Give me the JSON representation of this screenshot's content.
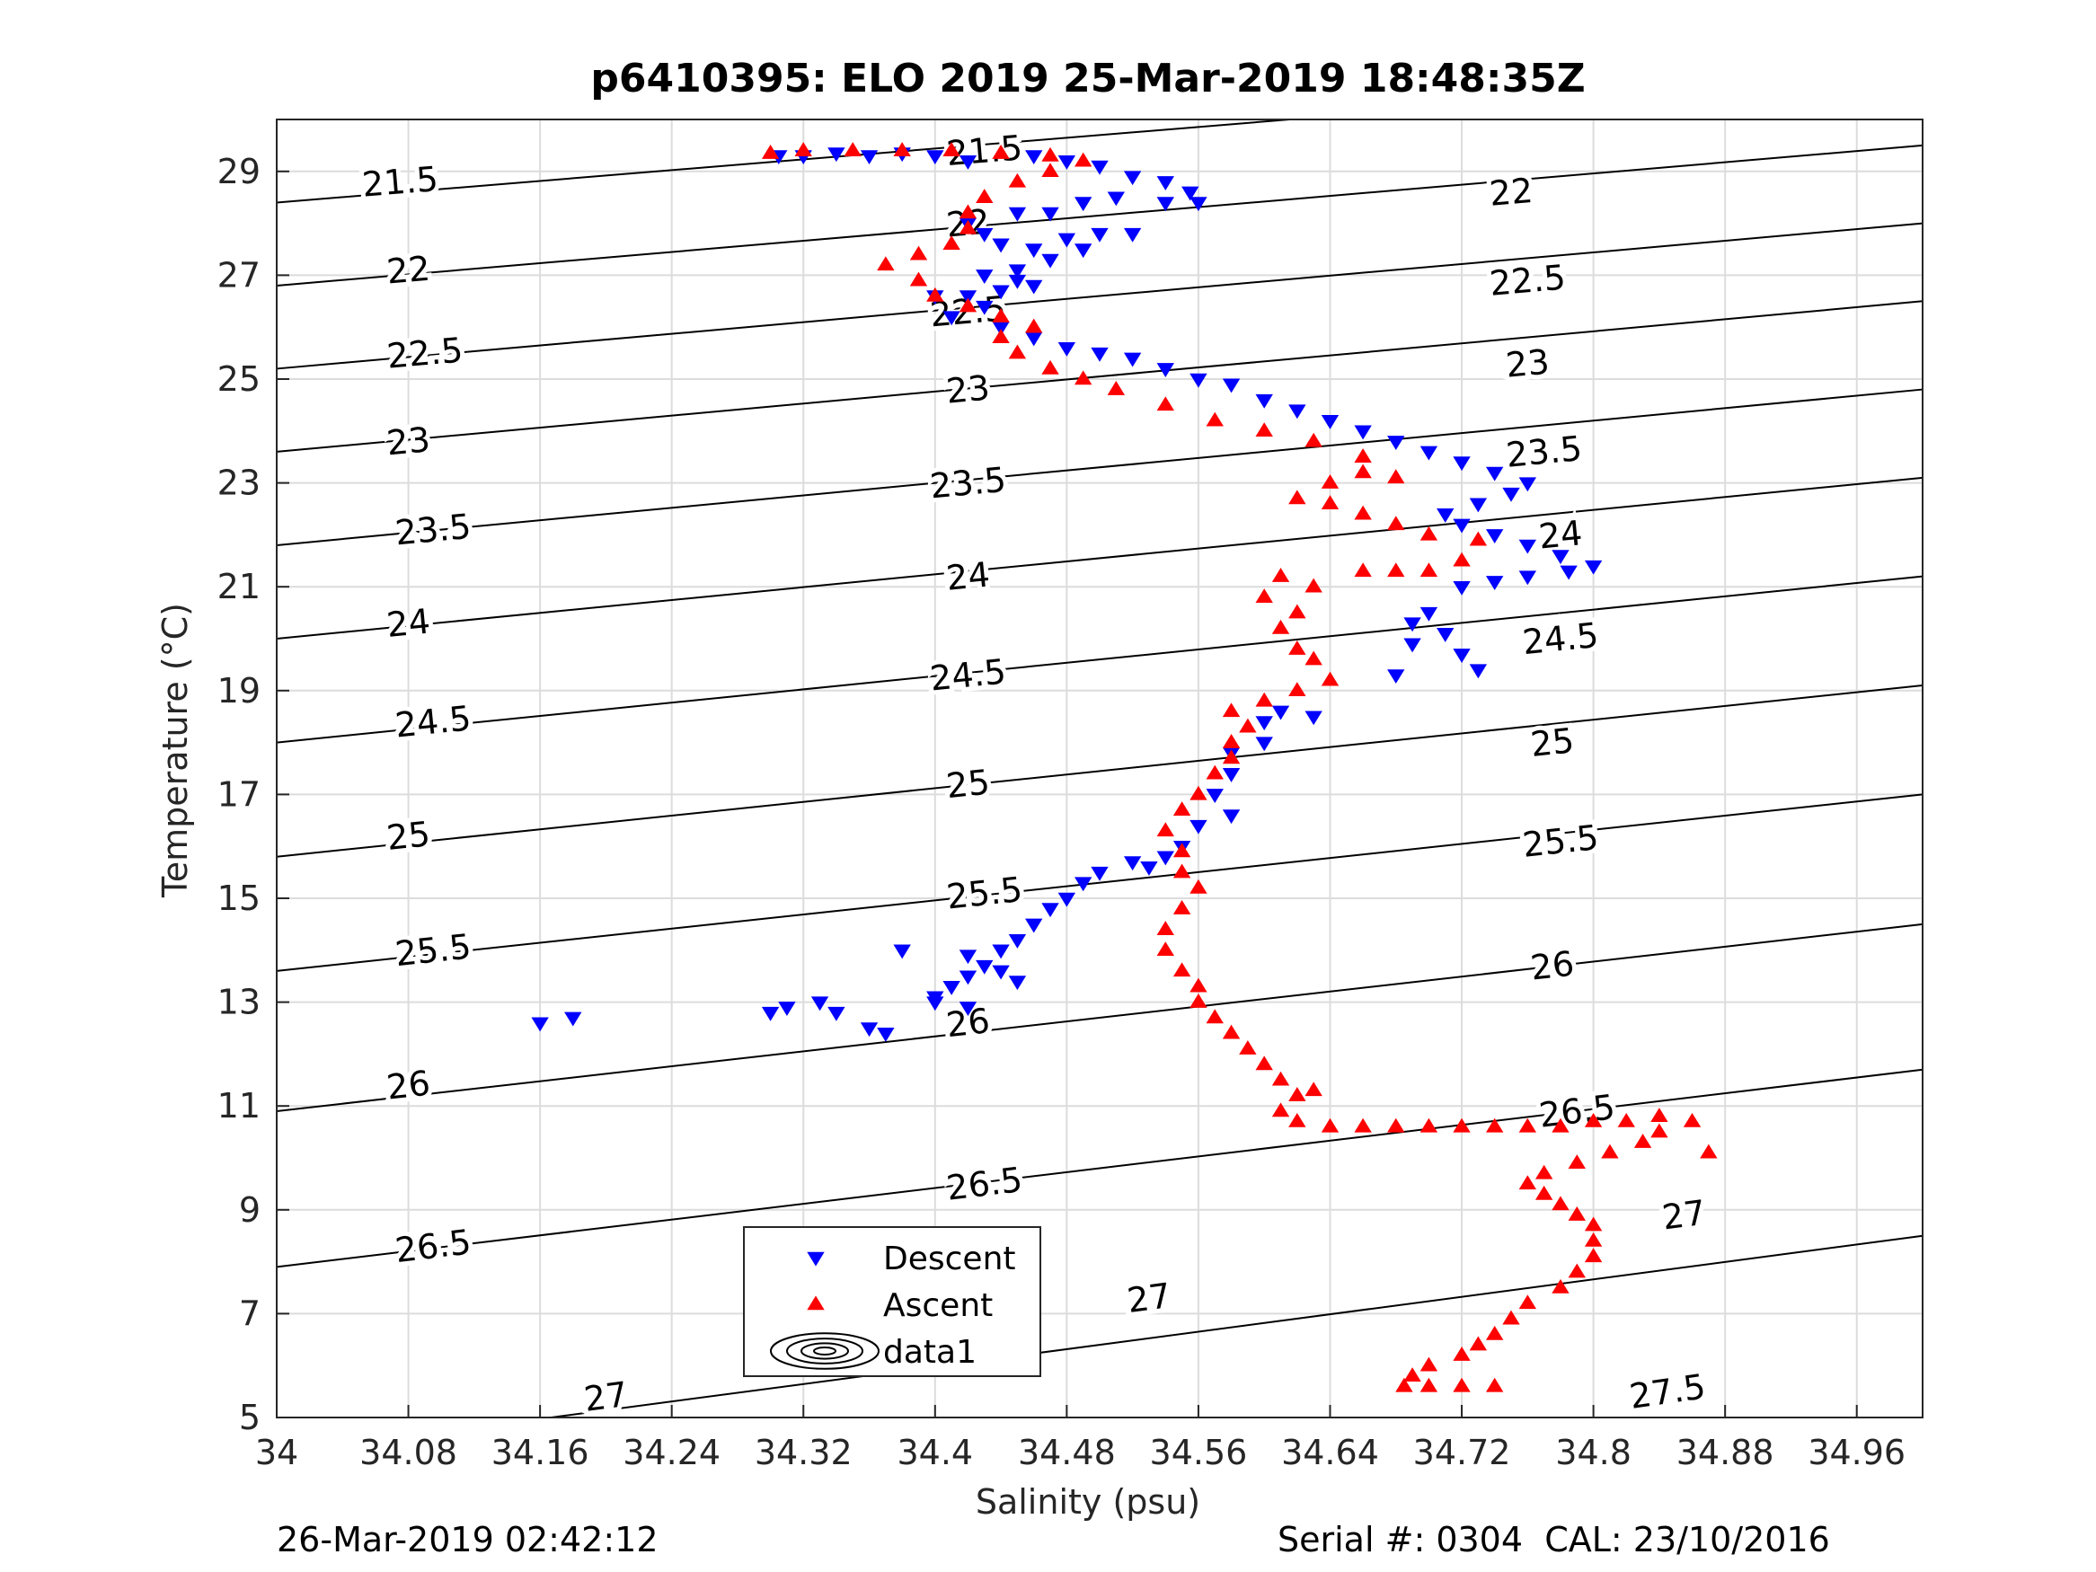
{
  "chart_data": {
    "type": "scatter",
    "title": "p6410395: ELO 2019 25-Mar-2019 18:48:35Z",
    "xlabel": "Salinity (psu)",
    "ylabel": "Temperature (°C)",
    "xlim": [
      34,
      35
    ],
    "ylim": [
      5,
      30
    ],
    "xticks": [
      "34",
      "34.08",
      "34.16",
      "34.24",
      "34.32",
      "34.4",
      "34.48",
      "34.56",
      "34.64",
      "34.72",
      "34.8",
      "34.88",
      "34.96"
    ],
    "yticks": [
      "5",
      "7",
      "9",
      "11",
      "13",
      "15",
      "17",
      "19",
      "21",
      "23",
      "25",
      "27",
      "29"
    ],
    "grid": true,
    "legend_position": "bottom-center",
    "legend": [
      {
        "label": "Descent",
        "marker": "triangle-down",
        "color": "#0000ff"
      },
      {
        "label": "Ascent",
        "marker": "triangle-up",
        "color": "#ff0000"
      },
      {
        "label": "data1",
        "marker": "contour",
        "color": "#000000"
      }
    ],
    "isopycnals": [
      {
        "label": "21.5",
        "slope": 2.6,
        "t_at_s34": 28.4,
        "label_positions": [
          [
            34.075,
            28.8
          ],
          [
            34.43,
            29.4
          ]
        ]
      },
      {
        "label": "22",
        "slope": 2.7,
        "t_at_s34": 26.8,
        "label_positions": [
          [
            34.08,
            27.1
          ],
          [
            34.42,
            28.0
          ],
          [
            34.75,
            28.6
          ]
        ]
      },
      {
        "label": "22.5",
        "slope": 2.8,
        "t_at_s34": 25.2,
        "label_positions": [
          [
            34.09,
            25.5
          ],
          [
            34.42,
            26.3
          ],
          [
            34.76,
            26.9
          ]
        ]
      },
      {
        "label": "23",
        "slope": 2.9,
        "t_at_s34": 23.6,
        "label_positions": [
          [
            34.08,
            23.8
          ],
          [
            34.42,
            24.8
          ],
          [
            34.76,
            25.3
          ]
        ]
      },
      {
        "label": "23.5",
        "slope": 3.0,
        "t_at_s34": 21.8,
        "label_positions": [
          [
            34.095,
            22.1
          ],
          [
            34.42,
            23.0
          ],
          [
            34.77,
            23.6
          ]
        ]
      },
      {
        "label": "24",
        "slope": 3.1,
        "t_at_s34": 20.0,
        "label_positions": [
          [
            34.08,
            20.3
          ],
          [
            34.42,
            21.2
          ],
          [
            34.78,
            22.0
          ]
        ]
      },
      {
        "label": "24.5",
        "slope": 3.2,
        "t_at_s34": 18.0,
        "label_positions": [
          [
            34.095,
            18.4
          ],
          [
            34.42,
            19.3
          ],
          [
            34.78,
            20.0
          ]
        ]
      },
      {
        "label": "25",
        "slope": 3.3,
        "t_at_s34": 15.8,
        "label_positions": [
          [
            34.08,
            16.2
          ],
          [
            34.42,
            17.2
          ],
          [
            34.775,
            18.0
          ]
        ]
      },
      {
        "label": "25.5",
        "slope": 3.4,
        "t_at_s34": 13.6,
        "label_positions": [
          [
            34.095,
            14.0
          ],
          [
            34.43,
            15.1
          ],
          [
            34.78,
            16.1
          ]
        ]
      },
      {
        "label": "26",
        "slope": 3.6,
        "t_at_s34": 10.9,
        "label_positions": [
          [
            34.08,
            11.4
          ],
          [
            34.42,
            12.6
          ],
          [
            34.775,
            13.7
          ]
        ]
      },
      {
        "label": "26.5",
        "slope": 3.8,
        "t_at_s34": 7.9,
        "label_positions": [
          [
            34.095,
            8.3
          ],
          [
            34.43,
            9.5
          ],
          [
            34.79,
            10.9
          ]
        ]
      },
      {
        "label": "27",
        "slope": 4.2,
        "t_at_s34": 4.3,
        "label_positions": [
          [
            34.2,
            5.4
          ],
          [
            34.53,
            7.3
          ],
          [
            34.855,
            8.9
          ]
        ]
      },
      {
        "label": "27.5",
        "slope": 4.6,
        "t_at_s34": 0.4,
        "label_positions": [
          [
            34.845,
            5.5
          ]
        ]
      }
    ],
    "series": [
      {
        "name": "Descent",
        "marker": "triangle-down",
        "color": "#0000ff",
        "points": [
          [
            34.305,
            29.3
          ],
          [
            34.32,
            29.3
          ],
          [
            34.34,
            29.35
          ],
          [
            34.36,
            29.3
          ],
          [
            34.38,
            29.35
          ],
          [
            34.4,
            29.3
          ],
          [
            34.42,
            29.2
          ],
          [
            34.46,
            29.3
          ],
          [
            34.48,
            29.2
          ],
          [
            34.5,
            29.1
          ],
          [
            34.52,
            28.9
          ],
          [
            34.54,
            28.8
          ],
          [
            34.555,
            28.6
          ],
          [
            34.56,
            28.4
          ],
          [
            34.54,
            28.4
          ],
          [
            34.51,
            28.5
          ],
          [
            34.49,
            28.4
          ],
          [
            34.47,
            28.2
          ],
          [
            34.45,
            28.2
          ],
          [
            34.42,
            28.0
          ],
          [
            34.43,
            27.8
          ],
          [
            34.44,
            27.6
          ],
          [
            34.46,
            27.5
          ],
          [
            34.48,
            27.7
          ],
          [
            34.5,
            27.8
          ],
          [
            34.52,
            27.8
          ],
          [
            34.49,
            27.5
          ],
          [
            34.47,
            27.3
          ],
          [
            34.45,
            27.1
          ],
          [
            34.43,
            27.0
          ],
          [
            34.45,
            26.9
          ],
          [
            34.46,
            26.8
          ],
          [
            34.44,
            26.7
          ],
          [
            34.42,
            26.6
          ],
          [
            34.4,
            26.6
          ],
          [
            34.43,
            26.4
          ],
          [
            34.41,
            26.2
          ],
          [
            34.44,
            26.0
          ],
          [
            34.46,
            25.8
          ],
          [
            34.48,
            25.6
          ],
          [
            34.5,
            25.5
          ],
          [
            34.52,
            25.4
          ],
          [
            34.54,
            25.2
          ],
          [
            34.56,
            25.0
          ],
          [
            34.58,
            24.9
          ],
          [
            34.6,
            24.6
          ],
          [
            34.62,
            24.4
          ],
          [
            34.64,
            24.2
          ],
          [
            34.66,
            24.0
          ],
          [
            34.68,
            23.8
          ],
          [
            34.7,
            23.6
          ],
          [
            34.72,
            23.4
          ],
          [
            34.74,
            23.2
          ],
          [
            34.76,
            23.0
          ],
          [
            34.75,
            22.8
          ],
          [
            34.73,
            22.6
          ],
          [
            34.71,
            22.4
          ],
          [
            34.72,
            22.2
          ],
          [
            34.74,
            22.0
          ],
          [
            34.76,
            21.8
          ],
          [
            34.78,
            21.6
          ],
          [
            34.8,
            21.4
          ],
          [
            34.785,
            21.3
          ],
          [
            34.76,
            21.2
          ],
          [
            34.74,
            21.1
          ],
          [
            34.72,
            21.0
          ],
          [
            34.7,
            20.5
          ],
          [
            34.69,
            20.3
          ],
          [
            34.71,
            20.1
          ],
          [
            34.69,
            19.9
          ],
          [
            34.72,
            19.7
          ],
          [
            34.73,
            19.4
          ],
          [
            34.68,
            19.3
          ],
          [
            34.63,
            18.5
          ],
          [
            34.61,
            18.6
          ],
          [
            34.6,
            18.4
          ],
          [
            34.6,
            18.0
          ],
          [
            34.58,
            17.8
          ],
          [
            34.58,
            17.4
          ],
          [
            34.57,
            17.0
          ],
          [
            34.58,
            16.6
          ],
          [
            34.56,
            16.4
          ],
          [
            34.55,
            16.0
          ],
          [
            34.54,
            15.8
          ],
          [
            34.53,
            15.6
          ],
          [
            34.52,
            15.7
          ],
          [
            34.5,
            15.5
          ],
          [
            34.49,
            15.3
          ],
          [
            34.48,
            15.0
          ],
          [
            34.47,
            14.8
          ],
          [
            34.46,
            14.5
          ],
          [
            34.45,
            14.2
          ],
          [
            34.44,
            14.0
          ],
          [
            34.43,
            13.7
          ],
          [
            34.42,
            13.5
          ],
          [
            34.41,
            13.3
          ],
          [
            34.4,
            13.1
          ],
          [
            34.42,
            13.9
          ],
          [
            34.44,
            13.6
          ],
          [
            34.45,
            13.4
          ],
          [
            34.38,
            14.0
          ],
          [
            34.4,
            13.0
          ],
          [
            34.42,
            12.9
          ],
          [
            34.36,
            12.5
          ],
          [
            34.37,
            12.4
          ],
          [
            34.34,
            12.8
          ],
          [
            34.33,
            13.0
          ],
          [
            34.31,
            12.9
          ],
          [
            34.3,
            12.8
          ],
          [
            34.18,
            12.7
          ],
          [
            34.16,
            12.6
          ]
        ]
      },
      {
        "name": "Ascent",
        "marker": "triangle-up",
        "color": "#ff0000",
        "points": [
          [
            34.685,
            5.6
          ],
          [
            34.7,
            5.6
          ],
          [
            34.72,
            5.6
          ],
          [
            34.74,
            5.6
          ],
          [
            34.69,
            5.8
          ],
          [
            34.7,
            6.0
          ],
          [
            34.72,
            6.2
          ],
          [
            34.73,
            6.4
          ],
          [
            34.74,
            6.6
          ],
          [
            34.75,
            6.9
          ],
          [
            34.76,
            7.2
          ],
          [
            34.78,
            7.5
          ],
          [
            34.79,
            7.8
          ],
          [
            34.8,
            8.1
          ],
          [
            34.8,
            8.4
          ],
          [
            34.8,
            8.7
          ],
          [
            34.79,
            8.9
          ],
          [
            34.78,
            9.1
          ],
          [
            34.77,
            9.3
          ],
          [
            34.76,
            9.5
          ],
          [
            34.77,
            9.7
          ],
          [
            34.79,
            9.9
          ],
          [
            34.81,
            10.1
          ],
          [
            34.83,
            10.3
          ],
          [
            34.84,
            10.5
          ],
          [
            34.86,
            10.7
          ],
          [
            34.87,
            10.1
          ],
          [
            34.84,
            10.8
          ],
          [
            34.82,
            10.7
          ],
          [
            34.8,
            10.7
          ],
          [
            34.78,
            10.6
          ],
          [
            34.76,
            10.6
          ],
          [
            34.74,
            10.6
          ],
          [
            34.72,
            10.6
          ],
          [
            34.7,
            10.6
          ],
          [
            34.68,
            10.6
          ],
          [
            34.66,
            10.6
          ],
          [
            34.64,
            10.6
          ],
          [
            34.62,
            10.7
          ],
          [
            34.61,
            10.9
          ],
          [
            34.62,
            11.2
          ],
          [
            34.63,
            11.3
          ],
          [
            34.61,
            11.5
          ],
          [
            34.6,
            11.8
          ],
          [
            34.59,
            12.1
          ],
          [
            34.58,
            12.4
          ],
          [
            34.57,
            12.7
          ],
          [
            34.56,
            13.0
          ],
          [
            34.56,
            13.3
          ],
          [
            34.55,
            13.6
          ],
          [
            34.54,
            14.0
          ],
          [
            34.54,
            14.4
          ],
          [
            34.55,
            14.8
          ],
          [
            34.56,
            15.2
          ],
          [
            34.55,
            15.5
          ],
          [
            34.55,
            15.9
          ],
          [
            34.54,
            16.3
          ],
          [
            34.55,
            16.7
          ],
          [
            34.56,
            17.0
          ],
          [
            34.57,
            17.4
          ],
          [
            34.58,
            17.7
          ],
          [
            34.58,
            18.0
          ],
          [
            34.59,
            18.3
          ],
          [
            34.58,
            18.6
          ],
          [
            34.6,
            18.8
          ],
          [
            34.62,
            19.0
          ],
          [
            34.64,
            19.2
          ],
          [
            34.63,
            19.6
          ],
          [
            34.62,
            19.8
          ],
          [
            34.61,
            20.2
          ],
          [
            34.62,
            20.5
          ],
          [
            34.6,
            20.8
          ],
          [
            34.61,
            21.2
          ],
          [
            34.63,
            21.0
          ],
          [
            34.66,
            21.3
          ],
          [
            34.68,
            21.3
          ],
          [
            34.7,
            21.3
          ],
          [
            34.72,
            21.5
          ],
          [
            34.73,
            21.9
          ],
          [
            34.7,
            22.0
          ],
          [
            34.68,
            22.2
          ],
          [
            34.66,
            22.4
          ],
          [
            34.64,
            22.6
          ],
          [
            34.62,
            22.7
          ],
          [
            34.64,
            23.0
          ],
          [
            34.66,
            23.2
          ],
          [
            34.68,
            23.1
          ],
          [
            34.66,
            23.5
          ],
          [
            34.63,
            23.8
          ],
          [
            34.6,
            24.0
          ],
          [
            34.57,
            24.2
          ],
          [
            34.54,
            24.5
          ],
          [
            34.51,
            24.8
          ],
          [
            34.49,
            25.0
          ],
          [
            34.47,
            25.2
          ],
          [
            34.45,
            25.5
          ],
          [
            34.44,
            25.8
          ],
          [
            34.46,
            26.0
          ],
          [
            34.44,
            26.2
          ],
          [
            34.42,
            26.4
          ],
          [
            34.4,
            26.6
          ],
          [
            34.39,
            26.9
          ],
          [
            34.37,
            27.2
          ],
          [
            34.39,
            27.4
          ],
          [
            34.41,
            27.6
          ],
          [
            34.42,
            27.9
          ],
          [
            34.42,
            28.2
          ],
          [
            34.43,
            28.5
          ],
          [
            34.45,
            28.8
          ],
          [
            34.47,
            29.0
          ],
          [
            34.49,
            29.2
          ],
          [
            34.47,
            29.3
          ],
          [
            34.44,
            29.35
          ],
          [
            34.41,
            29.4
          ],
          [
            34.38,
            29.4
          ],
          [
            34.35,
            29.4
          ],
          [
            34.32,
            29.4
          ],
          [
            34.3,
            29.35
          ]
        ]
      }
    ]
  },
  "footer": {
    "left": "26-Mar-2019 02:42:12",
    "right": "Serial #: 0304  CAL: 23/10/2016"
  }
}
